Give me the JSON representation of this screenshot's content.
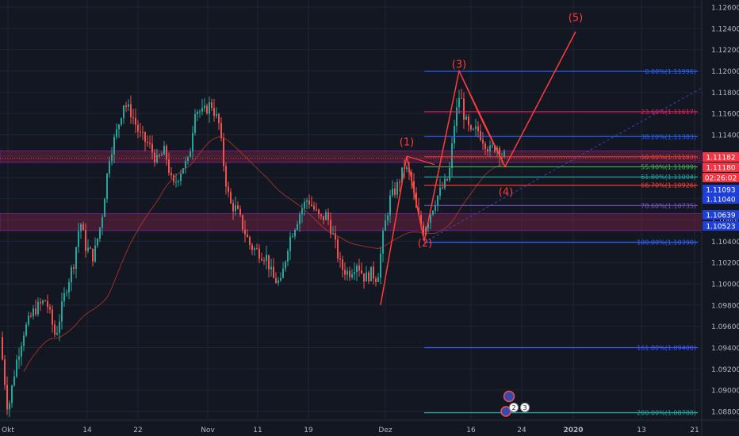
{
  "chart_data": {
    "type": "candlestick",
    "ylim": [
      1.0875,
      1.127
    ],
    "y_ticks": [
      1.126,
      1.124,
      1.122,
      1.12,
      1.118,
      1.116,
      1.114,
      1.112,
      1.11,
      1.108,
      1.106,
      1.104,
      1.102,
      1.1,
      1.098,
      1.096,
      1.094,
      1.092,
      1.09,
      1.088
    ],
    "x_ticks": [
      "Okt",
      "14",
      "22",
      "Nov",
      "11",
      "19",
      "Dez",
      "16",
      "24",
      "2020",
      "13",
      "21"
    ],
    "colors": {
      "background": "#131722",
      "up": "#26a69a",
      "down": "#ef5350",
      "grid": "#1f2433",
      "axis_text": "#b2b5be",
      "wave": "#ff3b3b",
      "current_price": "#f23645"
    },
    "price_badges": [
      {
        "value": "1.11182",
        "color": "#f23645"
      },
      {
        "value": "1.11180",
        "color": "#f23645"
      },
      {
        "value": "02:26:02",
        "color": "#f23645"
      },
      {
        "value": "1.11093",
        "color": "#1e3fd8"
      },
      {
        "value": "1.11040",
        "color": "#1e3fd8"
      },
      {
        "value": "1.10639",
        "color": "#1e3fd8"
      },
      {
        "value": "1.10523",
        "color": "#1e3fd8"
      }
    ],
    "fib_levels": [
      {
        "label": "0.00%(1.11996)",
        "price": 1.11996,
        "color": "#2962ff"
      },
      {
        "label": "23.60%(1.11617)",
        "price": 1.11617,
        "color": "#e91e63"
      },
      {
        "label": "38.20%(1.11383)",
        "price": 1.11383,
        "color": "#2962ff"
      },
      {
        "label": "50.00%(1.11193)",
        "price": 1.11193,
        "color": "#e53935"
      },
      {
        "label": "55.90%(1.11099)",
        "price": 1.11099,
        "color": "#4caf50"
      },
      {
        "label": "61.80%(1.11004)",
        "price": 1.11004,
        "color": "#26a69a"
      },
      {
        "label": "66.70%(1.10926)",
        "price": 1.10926,
        "color": "#f44336"
      },
      {
        "label": "78.60%(1.10735)",
        "price": 1.10735,
        "color": "#7e57c2"
      },
      {
        "label": "100.00%(1.10390)",
        "price": 1.1039,
        "color": "#2962ff"
      },
      {
        "label": "161.80%(1.09400)",
        "price": 1.094,
        "color": "#3d5afe"
      },
      {
        "label": "200.00%(1.08788)",
        "price": 1.08788,
        "color": "#26a69a"
      }
    ],
    "wave_labels": [
      {
        "label": "(1)",
        "price": 1.113
      },
      {
        "label": "(2)",
        "price": 1.1035
      },
      {
        "label": "(3)",
        "price": 1.1203
      },
      {
        "label": "(4)",
        "price": 1.1083
      },
      {
        "label": "(5)",
        "price": 1.1247
      }
    ],
    "wave_points": [
      {
        "price": 1.098
      },
      {
        "price": 1.112
      },
      {
        "price": 1.104
      },
      {
        "price": 1.12
      },
      {
        "price": 1.111
      },
      {
        "price": 1.1237
      }
    ],
    "zones": [
      {
        "name": "resistance-zone",
        "top": 1.1125,
        "bottom": 1.1114
      },
      {
        "name": "support-zone",
        "top": 1.1066,
        "bottom": 1.105
      }
    ],
    "event_icons": [
      "2",
      "3"
    ]
  }
}
